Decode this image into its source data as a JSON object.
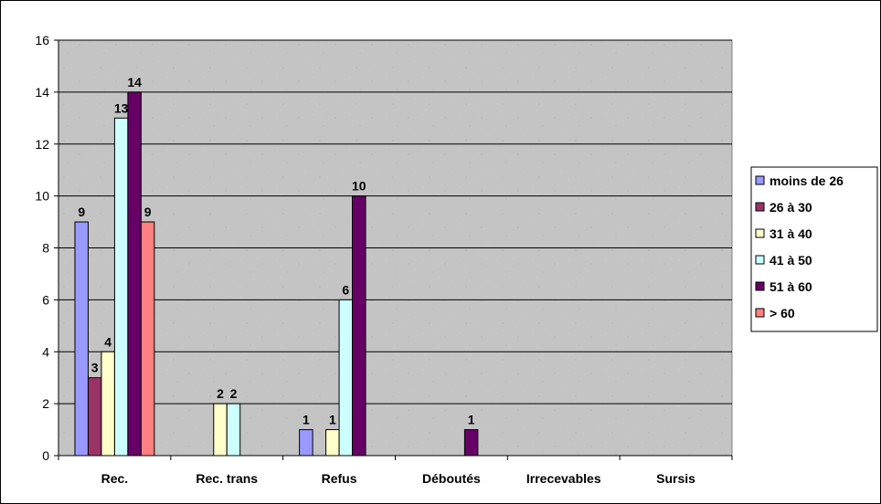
{
  "chart_data": {
    "type": "bar",
    "title": "",
    "xlabel": "",
    "ylabel": "",
    "ylim": [
      0,
      16
    ],
    "yticks": [
      0,
      2,
      4,
      6,
      8,
      10,
      12,
      14,
      16
    ],
    "grid": true,
    "legend_position": "right",
    "plot_background": "#c0c0c0",
    "categories": [
      "Rec.",
      "Rec. trans",
      "Refus",
      "Déboutés",
      "Irrecevables",
      "Sursis"
    ],
    "series": [
      {
        "name": "moins de 26",
        "color": "#9999ff",
        "values": [
          9,
          0,
          1,
          0,
          0,
          0
        ]
      },
      {
        "name": "26 à 30",
        "color": "#993366",
        "values": [
          3,
          0,
          0,
          0,
          0,
          0
        ]
      },
      {
        "name": "31 à 40",
        "color": "#ffffcc",
        "values": [
          4,
          2,
          1,
          0,
          0,
          0
        ]
      },
      {
        "name": "41 à 50",
        "color": "#ccffff",
        "values": [
          13,
          2,
          6,
          0,
          0,
          0
        ]
      },
      {
        "name": "51 à 60",
        "color": "#660066",
        "values": [
          14,
          0,
          10,
          1,
          0,
          0
        ]
      },
      {
        "name": "> 60",
        "color": "#ff8080",
        "values": [
          9,
          0,
          0,
          0,
          0,
          0
        ]
      }
    ]
  }
}
